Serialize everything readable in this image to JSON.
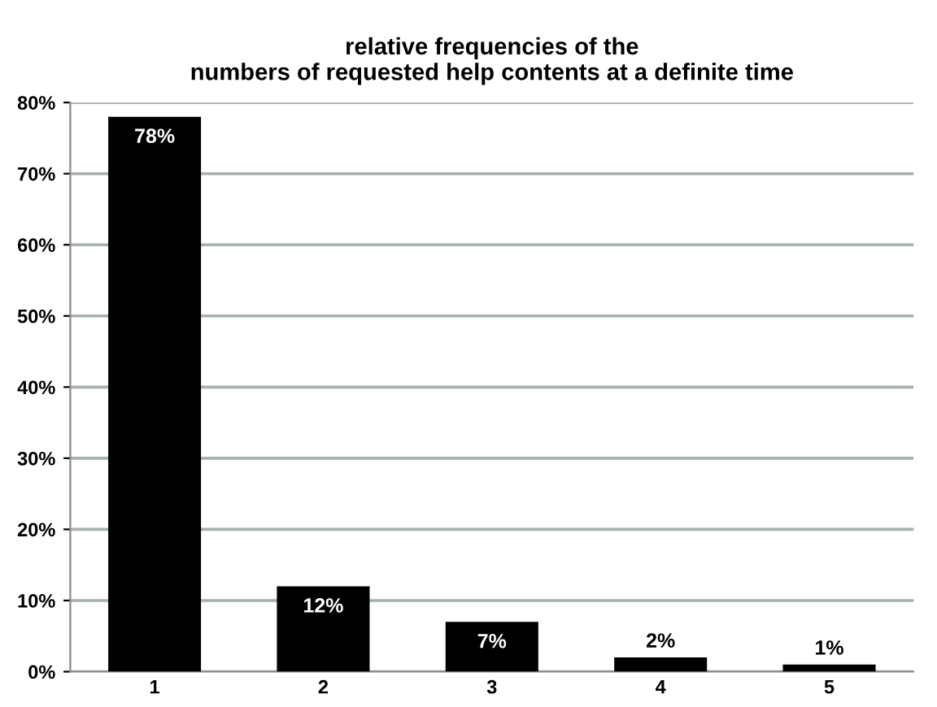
{
  "chart_data": {
    "type": "bar",
    "title": "relative frequencies of the\nnumbers of requested help contents at a definite time",
    "categories": [
      "1",
      "2",
      "3",
      "4",
      "5"
    ],
    "values": [
      78,
      12,
      7,
      2,
      1
    ],
    "color": "#000000",
    "value_labels": [
      "78%",
      "12%",
      "7%",
      "2%",
      "1%"
    ],
    "ylim": [
      0,
      80
    ],
    "yticks": [
      {
        "value": 0,
        "label": "0%"
      },
      {
        "value": 10,
        "label": "10%"
      },
      {
        "value": 20,
        "label": "20%"
      },
      {
        "value": 30,
        "label": "30%"
      },
      {
        "value": 40,
        "label": "40%"
      },
      {
        "value": 50,
        "label": "50%"
      },
      {
        "value": 60,
        "label": "60%"
      },
      {
        "value": 70,
        "label": "70%"
      },
      {
        "value": 80,
        "label": "80%"
      }
    ],
    "grid": "y"
  }
}
